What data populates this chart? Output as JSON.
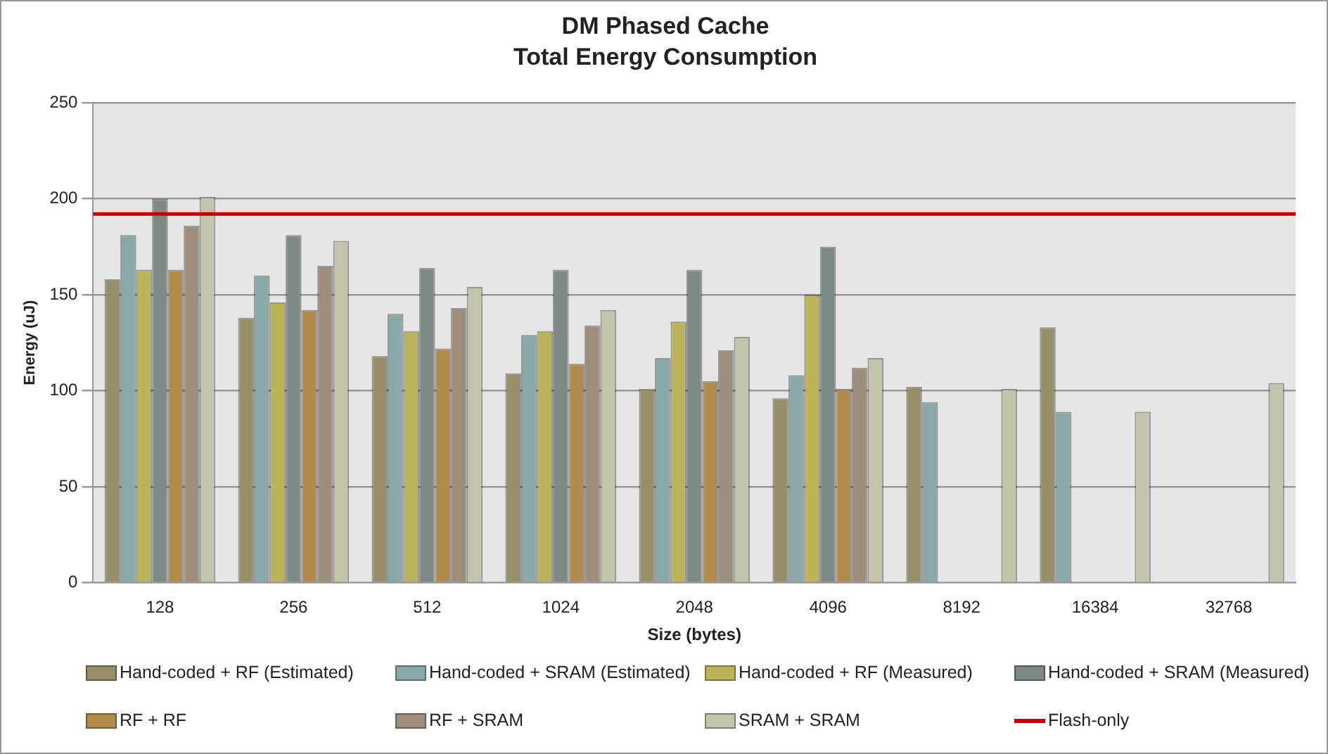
{
  "chart_data": {
    "type": "bar",
    "title": "DM Phased Cache",
    "subtitle": "Total Energy Consumption",
    "xlabel": "Size (bytes)",
    "ylabel": "Energy (uJ)",
    "categories": [
      "128",
      "256",
      "512",
      "1024",
      "2048",
      "4096",
      "8192",
      "16384",
      "32768"
    ],
    "series": [
      {
        "name": "Hand-coded + RF (Estimated)",
        "color": "#968f6a",
        "values": [
          158,
          138,
          118,
          109,
          101,
          96,
          102,
          133,
          null
        ]
      },
      {
        "name": "Hand-coded + SRAM (Estimated)",
        "color": "#8aa8a8",
        "values": [
          181,
          160,
          140,
          129,
          117,
          108,
          94,
          89,
          null
        ]
      },
      {
        "name": "Hand-coded + RF (Measured)",
        "color": "#bcb45c",
        "values": [
          163,
          146,
          131,
          131,
          136,
          150,
          null,
          null,
          null
        ]
      },
      {
        "name": "Hand-coded + SRAM (Measured)",
        "color": "#7f8a86",
        "values": [
          200,
          181,
          164,
          163,
          163,
          175,
          null,
          null,
          null
        ]
      },
      {
        "name": "RF + RF",
        "color": "#b18a4e",
        "values": [
          163,
          142,
          122,
          114,
          105,
          101,
          null,
          null,
          null
        ]
      },
      {
        "name": "RF + SRAM",
        "color": "#9d8d7b",
        "values": [
          186,
          165,
          143,
          134,
          121,
          112,
          null,
          null,
          null
        ]
      },
      {
        "name": "SRAM + SRAM",
        "color": "#c4c3ab",
        "values": [
          201,
          178,
          154,
          142,
          128,
          117,
          101,
          89,
          104
        ]
      }
    ],
    "ylim": [
      0,
      250
    ],
    "yticks": [
      0,
      50,
      100,
      150,
      200,
      250
    ],
    "grid": "y",
    "legend": "bottom",
    "ref_lines": [
      {
        "axis": "y",
        "value": 192,
        "label": "Flash-only",
        "color": "#c00000"
      }
    ]
  }
}
